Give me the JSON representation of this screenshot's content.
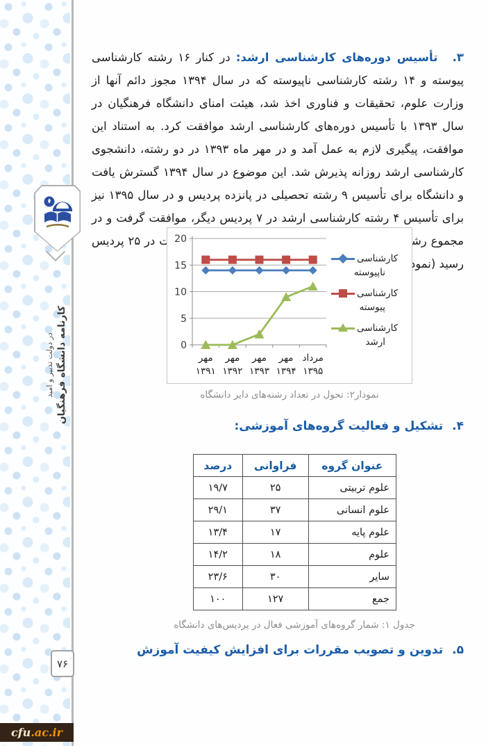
{
  "page": {
    "number": "۷۶",
    "watermark_prefix": "cfu",
    "watermark_suffix": ".ac.ir"
  },
  "sidebar": {
    "book_title": "کارنامه دانشگاه فرهنگیان",
    "book_subtitle": "در دولت تدبیر و امید"
  },
  "sections": {
    "item3": {
      "number": "۳.",
      "title": "تأسیس دوره‌های کارشناسی ارشد:",
      "body": "در کنار ۱۶ رشته کارشناسی پیوسته و ۱۴ رشته کارشناسی ناپیوسته که در سال ۱۳۹۴ مجوز دائم آنها از وزارت علوم، تحقیقات و فناوری اخذ شد، هیئت امنای دانشگاه فرهنگیان در سال ۱۳۹۳ با تأسیس دوره‌های کارشناسی ارشد موافقت کرد. به استناد این موافقت، پیگیری لازم به عمل آمد و در مهر ماه ۱۳۹۳ در دو رشته، دانشجوی کارشناسی ارشد روزانه پذیرش شد. این موضوع در سال ۱۳۹۴ گسترش یافت و دانشگاه برای تأسیس ۹ رشته تحصیلی در پانزده پردیس و در سال ۱۳۹۵ نیز برای تأسیس ۴ رشته کارشناسی ارشد در ۷ پردیس دیگر، موافقت گرفت و در مجموع رشته‌های دایر کارشناسی ارشد به یازده عنوان با فعالیت در ۲۵ پردیس رسید (نمودار ۲)."
    },
    "item4": {
      "number": "۴.",
      "title": "تشکیل و فعالیت گروه‌های آموزشی:"
    },
    "item5": {
      "number": "۵.",
      "title": "تدوین و تصویب مقررات برای افزایش کیفیت آموزش"
    }
  },
  "chart_data": {
    "type": "line",
    "title": "نمودار۲: تحول در تعداد رشته‌های دایر دانشگاه",
    "categories": [
      "مهر ۱۳۹۱",
      "مهر ۱۳۹۲",
      "مهر ۱۳۹۳",
      "مهر ۱۳۹۴",
      "مرداد ۱۳۹۵"
    ],
    "categories_line1": [
      "مهر",
      "مهر",
      "مهر",
      "مهر",
      "مرداد"
    ],
    "categories_line2": [
      "۱۳۹۱",
      "۱۳۹۲",
      "۱۳۹۳",
      "۱۳۹۴",
      "۱۳۹۵"
    ],
    "series": [
      {
        "name": "کارشناسی ناپیوسته",
        "values": [
          14,
          14,
          14,
          14,
          14
        ],
        "color": "#4A7EBD",
        "marker": "diamond"
      },
      {
        "name": "کارشناسی پیوسته",
        "values": [
          16,
          16,
          16,
          16,
          16
        ],
        "color": "#BF4C47",
        "marker": "square"
      },
      {
        "name": "کارشناسی ارشد",
        "values": [
          0,
          0,
          2,
          9,
          11
        ],
        "color": "#9CBB58",
        "marker": "triangle"
      }
    ],
    "ylim": [
      0,
      20
    ],
    "ytick_step": 5,
    "yticks": [
      "0",
      "5",
      "10",
      "15",
      "20"
    ],
    "grid": true,
    "legend_position": "right"
  },
  "table": {
    "caption": "جدول ۱: شمار گروه‌های آموزشی فعال در پردیس‌های دانشگاه",
    "headers": [
      "عنوان گروه",
      "فراوانی",
      "درصد"
    ],
    "rows": [
      [
        "علوم تربیتی",
        "۲۵",
        "۱۹/۷"
      ],
      [
        "علوم انسانی",
        "۳۷",
        "۲۹/۱"
      ],
      [
        "علوم پایه",
        "۱۷",
        "۱۳/۴"
      ],
      [
        "علوم",
        "۱۸",
        "۱۴/۲"
      ],
      [
        "سایر",
        "۳۰",
        "۲۳/۶"
      ],
      [
        "جمع",
        "۱۲۷",
        "۱۰۰"
      ]
    ]
  }
}
